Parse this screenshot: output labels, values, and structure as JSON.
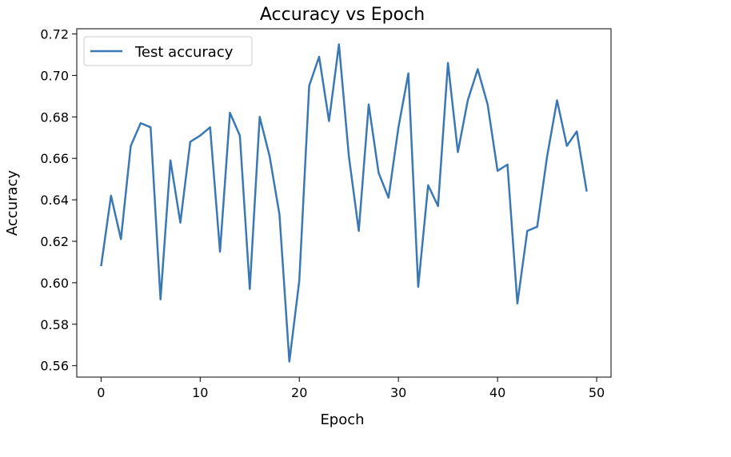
{
  "chart_data": {
    "type": "line",
    "title": "Accuracy vs Epoch",
    "xlabel": "Epoch",
    "ylabel": "Accuracy",
    "xlim": [
      -2.45,
      51.45
    ],
    "ylim": [
      0.5545,
      0.7225
    ],
    "xticks": [
      0,
      10,
      20,
      30,
      40,
      50
    ],
    "yticks": [
      0.56,
      0.58,
      0.6,
      0.62,
      0.64,
      0.66,
      0.68,
      0.7,
      0.72
    ],
    "ytick_labels": [
      "0.56",
      "0.58",
      "0.60",
      "0.62",
      "0.64",
      "0.66",
      "0.68",
      "0.70",
      "0.72"
    ],
    "grid": false,
    "legend_position": "top-left",
    "series": [
      {
        "name": "Test accuracy",
        "color": "#3a78b5",
        "x": [
          0,
          1,
          2,
          3,
          4,
          5,
          6,
          7,
          8,
          9,
          10,
          11,
          12,
          13,
          14,
          15,
          16,
          17,
          18,
          19,
          20,
          21,
          22,
          23,
          24,
          25,
          26,
          27,
          28,
          29,
          30,
          31,
          32,
          33,
          34,
          35,
          36,
          37,
          38,
          39,
          40,
          41,
          42,
          43,
          44,
          45,
          46,
          47,
          48,
          49
        ],
        "y": [
          0.608,
          0.642,
          0.621,
          0.666,
          0.677,
          0.675,
          0.592,
          0.659,
          0.629,
          0.668,
          0.671,
          0.675,
          0.615,
          0.682,
          0.671,
          0.597,
          0.68,
          0.661,
          0.633,
          0.562,
          0.601,
          0.695,
          0.709,
          0.678,
          0.715,
          0.661,
          0.625,
          0.686,
          0.653,
          0.641,
          0.675,
          0.701,
          0.598,
          0.647,
          0.637,
          0.706,
          0.663,
          0.688,
          0.703,
          0.686,
          0.654,
          0.657,
          0.59,
          0.625,
          0.627,
          0.661,
          0.688,
          0.666,
          0.673,
          0.644
        ]
      }
    ]
  }
}
